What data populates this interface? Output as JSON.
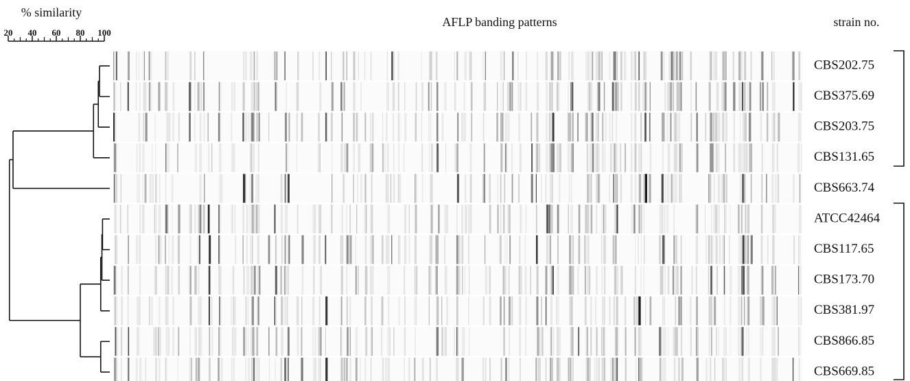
{
  "chart_data": {
    "type": "dendrogram",
    "title": "AFLP banding patterns",
    "xlabel": "% similarity",
    "leaf_header": "strain no.",
    "xlim": [
      20,
      100
    ],
    "xticks": [
      20,
      40,
      60,
      80,
      100
    ],
    "tree": {
      "similarity": 21,
      "children": [
        {
          "similarity": 24,
          "children": [
            {
              "similarity": 91,
              "children": [
                {
                  "similarity": 95,
                  "children": [
                    {
                      "similarity": 96,
                      "children": [
                        "CBS202.75",
                        "CBS375.69"
                      ]
                    },
                    "CBS203.75"
                  ]
                },
                "CBS131.65"
              ]
            },
            "CBS663.74"
          ]
        },
        {
          "similarity": 80,
          "children": [
            {
              "similarity": 97,
              "children": [
                {
                  "similarity": 98,
                  "children": [
                    {
                      "similarity": 98.5,
                      "children": [
                        "ATCC42464",
                        "CBS117.65"
                      ]
                    },
                    "CBS173.70"
                  ]
                },
                "CBS381.97"
              ]
            },
            {
              "similarity": 97,
              "children": [
                "CBS866.85",
                "CBS669.85"
              ]
            }
          ]
        }
      ]
    }
  }
}
